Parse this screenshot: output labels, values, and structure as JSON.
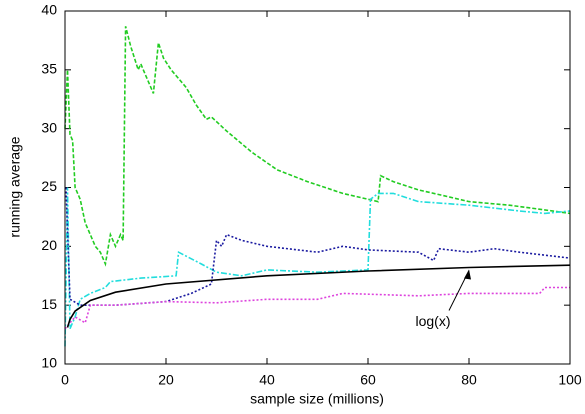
{
  "chart_data": {
    "type": "line",
    "xlabel": "sample size (millions)",
    "ylabel": "running average",
    "xlim": [
      0,
      100
    ],
    "xticks": [
      0,
      20,
      40,
      60,
      80,
      100
    ],
    "ylim": [
      10,
      40
    ],
    "yticks": [
      10,
      15,
      20,
      25,
      30,
      35,
      40
    ],
    "series": [
      {
        "color": "#22cc22",
        "x": [
          0,
          0.5,
          1,
          1.5,
          2,
          3,
          4,
          5,
          6,
          7,
          8,
          9,
          10,
          11,
          11.5,
          12,
          13,
          14.5,
          15,
          16,
          17.5,
          18.5,
          19.5,
          21,
          24,
          26,
          28,
          29,
          32,
          37,
          42,
          48,
          55,
          62,
          62.5,
          65,
          70,
          75,
          80,
          88,
          95,
          100
        ],
        "values": [
          30,
          35,
          29.5,
          29,
          25,
          24,
          22,
          21,
          20,
          19.5,
          18.5,
          21,
          20,
          21,
          20.5,
          38.7,
          37,
          35,
          35.5,
          34.5,
          33,
          37.3,
          36,
          35,
          33.5,
          32,
          30.8,
          31,
          29.8,
          28,
          26.5,
          25.5,
          24.5,
          23.8,
          26,
          25.5,
          24.8,
          24.3,
          23.8,
          23.5,
          23.1,
          22.8
        ]
      },
      {
        "color": "#22dddd",
        "x": [
          0,
          0.5,
          1,
          2,
          3,
          5,
          8,
          9,
          15,
          22,
          22.5,
          27,
          30,
          35,
          40,
          50,
          60,
          60.5,
          62,
          65,
          70,
          80,
          90,
          95,
          100
        ],
        "values": [
          11.5,
          25,
          13,
          14,
          15.5,
          16,
          16.5,
          17,
          17.3,
          17.5,
          19.5,
          18.5,
          17.8,
          17.5,
          18,
          17.8,
          18,
          24,
          24.5,
          24.5,
          23.8,
          23.5,
          23,
          22.8,
          23
        ]
      },
      {
        "color": "#1a1aa0",
        "x": [
          0.2,
          1,
          3,
          10,
          20,
          25,
          29,
          30,
          31,
          32,
          35,
          40,
          50,
          55,
          60,
          70,
          73,
          74,
          80,
          85,
          90,
          100
        ],
        "values": [
          25,
          15.5,
          15,
          15,
          15.3,
          16,
          16.8,
          20.5,
          20,
          21,
          20.5,
          20,
          19.5,
          20,
          19.7,
          19.5,
          18.8,
          19.8,
          19.5,
          19.8,
          19.5,
          19
        ]
      },
      {
        "color": "#dd44dd",
        "x": [
          0,
          2,
          4,
          5,
          10,
          20,
          30,
          40,
          50,
          55,
          70,
          80,
          94,
          95,
          100
        ],
        "values": [
          13,
          14,
          13.5,
          15,
          15,
          15.3,
          15.2,
          15.5,
          15.5,
          16,
          15.8,
          16,
          16,
          16.5,
          16.5
        ]
      },
      {
        "name": "log(x)",
        "color": "#000000",
        "x": [
          0.5,
          1,
          2,
          5,
          10,
          20,
          40,
          60,
          80,
          100
        ],
        "values": [
          13.1,
          13.8,
          14.5,
          15.4,
          16.1,
          16.8,
          17.5,
          17.9,
          18.2,
          18.4
        ]
      }
    ]
  }
}
